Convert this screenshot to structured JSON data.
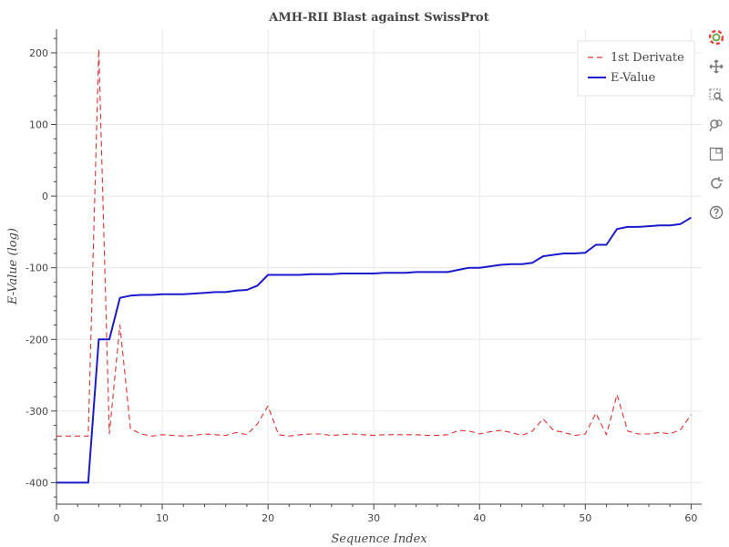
{
  "chart_data": {
    "type": "line",
    "title": "AMH-RII Blast against SwissProt",
    "xlabel": "Sequence Index",
    "ylabel": "E-Value (log)",
    "xlim": [
      0,
      61
    ],
    "ylim": [
      -430,
      233
    ],
    "x_ticks": [
      0,
      10,
      20,
      30,
      40,
      50,
      60
    ],
    "y_ticks": [
      -400,
      -300,
      -200,
      -100,
      0,
      100,
      200
    ],
    "grid": true,
    "legend_position": "top-right",
    "x": [
      0,
      1,
      2,
      3,
      4,
      5,
      6,
      7,
      8,
      9,
      10,
      11,
      12,
      13,
      14,
      15,
      16,
      17,
      18,
      19,
      20,
      21,
      22,
      23,
      24,
      25,
      26,
      27,
      28,
      29,
      30,
      31,
      32,
      33,
      34,
      35,
      36,
      37,
      38,
      39,
      40,
      41,
      42,
      43,
      44,
      45,
      46,
      47,
      48,
      49,
      50,
      51,
      52,
      53,
      54,
      55,
      56,
      57,
      58,
      59,
      60
    ],
    "series": [
      {
        "name": "1st Derivate",
        "color": "#e03030",
        "dash": true,
        "values": [
          -335,
          -335,
          -335,
          -335,
          205,
          -332,
          -180,
          -325,
          -332,
          -335,
          -333,
          -334,
          -335,
          -334,
          -332,
          -333,
          -334,
          -330,
          -333,
          -318,
          -293,
          -333,
          -335,
          -333,
          -332,
          -332,
          -334,
          -333,
          -332,
          -333,
          -334,
          -333,
          -333,
          -333,
          -333,
          -334,
          -334,
          -333,
          -327,
          -328,
          -332,
          -329,
          -327,
          -330,
          -334,
          -328,
          -311,
          -327,
          -330,
          -334,
          -332,
          -303,
          -333,
          -277,
          -328,
          -332,
          -332,
          -330,
          -332,
          -326,
          -305
        ]
      },
      {
        "name": "E-Value",
        "color": "#1a1acc",
        "dash": false,
        "values": [
          -400,
          -400,
          -400,
          -400,
          -200,
          -200,
          -142,
          -139,
          -138,
          -138,
          -137,
          -137,
          -137,
          -136,
          -135,
          -134,
          -134,
          -132,
          -131,
          -125,
          -110,
          -110,
          -110,
          -110,
          -109,
          -109,
          -109,
          -108,
          -108,
          -108,
          -108,
          -107,
          -107,
          -107,
          -106,
          -106,
          -106,
          -106,
          -103,
          -100,
          -100,
          -98,
          -96,
          -95,
          -95,
          -93,
          -84,
          -82,
          -80,
          -80,
          -79,
          -68,
          -68,
          -46,
          -43,
          -43,
          -42,
          -41,
          -41,
          -39,
          -30
        ]
      }
    ]
  },
  "toolbar": {
    "tools": [
      {
        "name": "bokeh-logo-icon"
      },
      {
        "name": "pan-icon"
      },
      {
        "name": "box-zoom-icon"
      },
      {
        "name": "wheel-zoom-icon"
      },
      {
        "name": "save-icon"
      },
      {
        "name": "reset-icon"
      },
      {
        "name": "help-icon"
      }
    ]
  }
}
